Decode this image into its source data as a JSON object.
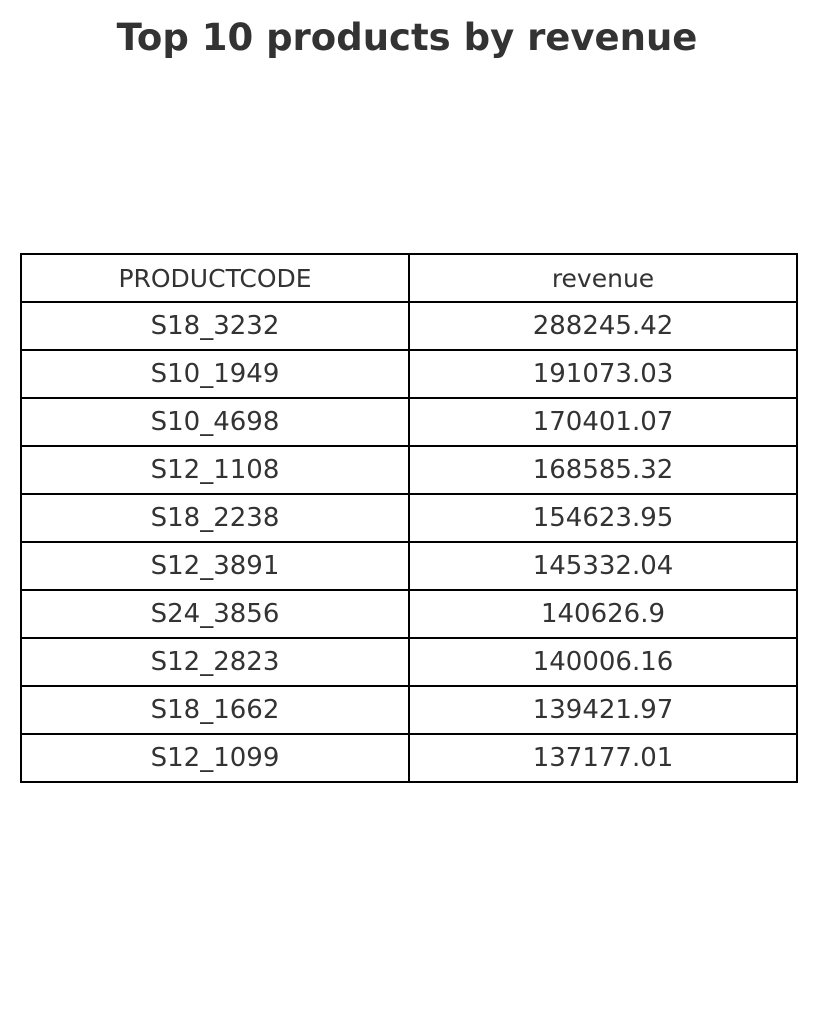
{
  "chart_data": {
    "type": "table",
    "title": "Top 10 products by revenue",
    "columns": [
      "PRODUCTCODE",
      "revenue"
    ],
    "rows": [
      [
        "S18_3232",
        "288245.42"
      ],
      [
        "S10_1949",
        "191073.03"
      ],
      [
        "S10_4698",
        "170401.07"
      ],
      [
        "S12_1108",
        "168585.32"
      ],
      [
        "S18_2238",
        "154623.95"
      ],
      [
        "S12_3891",
        "145332.04"
      ],
      [
        "S24_3856",
        "140626.9"
      ],
      [
        "S12_2823",
        "140006.16"
      ],
      [
        "S18_1662",
        "139421.97"
      ],
      [
        "S12_1099",
        "137177.01"
      ]
    ]
  }
}
